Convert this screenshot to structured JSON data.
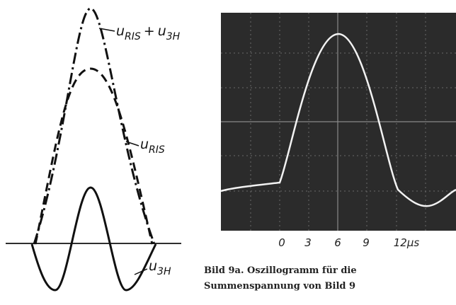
{
  "left_diagram": {
    "sum_label": {
      "u1": "u",
      "sub1": "RIS",
      "op": "+",
      "u2": "u",
      "sub2": "3H"
    },
    "ris_label": {
      "u": "u",
      "sub": "RIS"
    },
    "h3_label": {
      "u": "u",
      "sub": "3H"
    }
  },
  "oscillogram": {
    "axis_labels": [
      "0",
      "3",
      "6",
      "9",
      "12µs"
    ]
  },
  "caption": {
    "line1": "Bild 9a. Oszillogramm für die",
    "line2": "Summenspannung von Bild 9"
  }
}
